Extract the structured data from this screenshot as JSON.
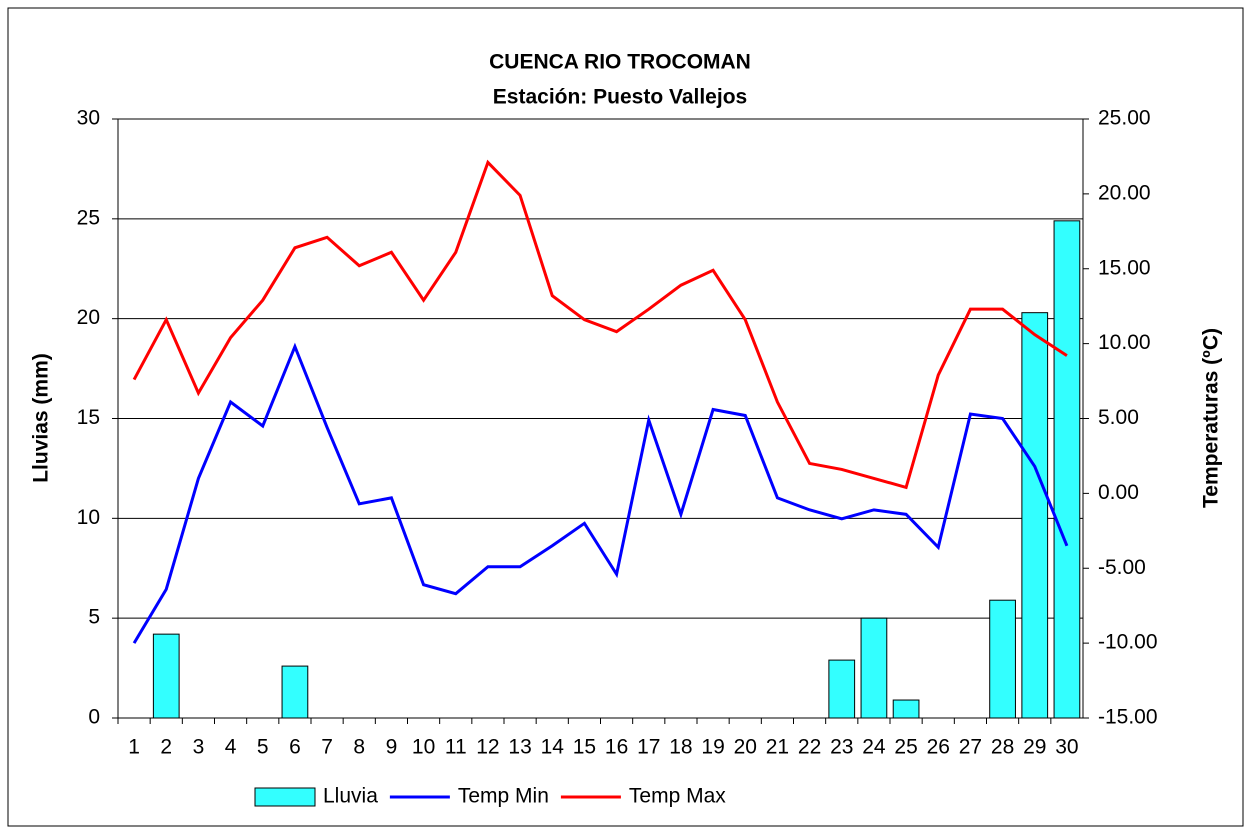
{
  "chart_data": {
    "type": "combo",
    "title": "CUENCA RIO TROCOMAN",
    "subtitle": "Estación: Puesto Vallejos",
    "y_label": "Lluvias (mm)",
    "y2_label": "Temperaturas (ºC)",
    "categories": [
      "1",
      "2",
      "3",
      "4",
      "5",
      "6",
      "7",
      "8",
      "9",
      "10",
      "11",
      "12",
      "13",
      "14",
      "15",
      "16",
      "17",
      "18",
      "19",
      "20",
      "21",
      "22",
      "23",
      "24",
      "25",
      "26",
      "27",
      "28",
      "29",
      "30"
    ],
    "series": [
      {
        "name": "Lluvia",
        "type": "bar",
        "color": "#33ffff",
        "axis": "y",
        "values": [
          0,
          4.2,
          0,
          0,
          0,
          2.6,
          0,
          0,
          0,
          0,
          0,
          0,
          0,
          0,
          0,
          0,
          0,
          0,
          0,
          0,
          0,
          0,
          2.9,
          5.0,
          0.9,
          0,
          0,
          5.9,
          20.3,
          24.9
        ]
      },
      {
        "name": "Temp Min",
        "type": "line",
        "color": "#0000ff",
        "axis": "y2",
        "values": [
          -10.0,
          -6.4,
          1.0,
          6.1,
          4.5,
          9.8,
          4.4,
          -0.7,
          -0.3,
          -6.1,
          -6.7,
          -4.9,
          -4.9,
          -3.5,
          -2.0,
          -5.4,
          4.9,
          -1.4,
          5.6,
          5.2,
          -0.3,
          -1.1,
          -1.7,
          -1.1,
          -1.4,
          -3.6,
          5.3,
          5.0,
          1.8,
          -3.5
        ]
      },
      {
        "name": "Temp Max",
        "type": "line",
        "color": "#ff0000",
        "axis": "y2",
        "values": [
          7.6,
          11.6,
          6.7,
          10.4,
          12.9,
          16.4,
          17.1,
          15.2,
          16.1,
          12.9,
          16.1,
          22.1,
          19.9,
          13.2,
          11.6,
          10.8,
          12.3,
          13.9,
          14.9,
          11.6,
          6.1,
          2.0,
          1.6,
          1.0,
          0.4,
          7.9,
          12.3,
          12.3,
          10.6,
          9.2
        ]
      }
    ],
    "ylim": [
      0,
      30
    ],
    "yticks": [
      0,
      5,
      10,
      15,
      20,
      25,
      30
    ],
    "y2lim": [
      -15,
      25
    ],
    "y2ticks": [
      {
        "value": -15,
        "label": "-15.00"
      },
      {
        "value": -10,
        "label": "-10.00"
      },
      {
        "value": -5,
        "label": "-5.00"
      },
      {
        "value": 0,
        "label": "0.00"
      },
      {
        "value": 5,
        "label": "5.00"
      },
      {
        "value": 10,
        "label": "10.00"
      },
      {
        "value": 15,
        "label": "15.00"
      },
      {
        "value": 20,
        "label": "20.00"
      },
      {
        "value": 25,
        "label": "25.00"
      }
    ],
    "grid": true,
    "legend": "bottom"
  }
}
